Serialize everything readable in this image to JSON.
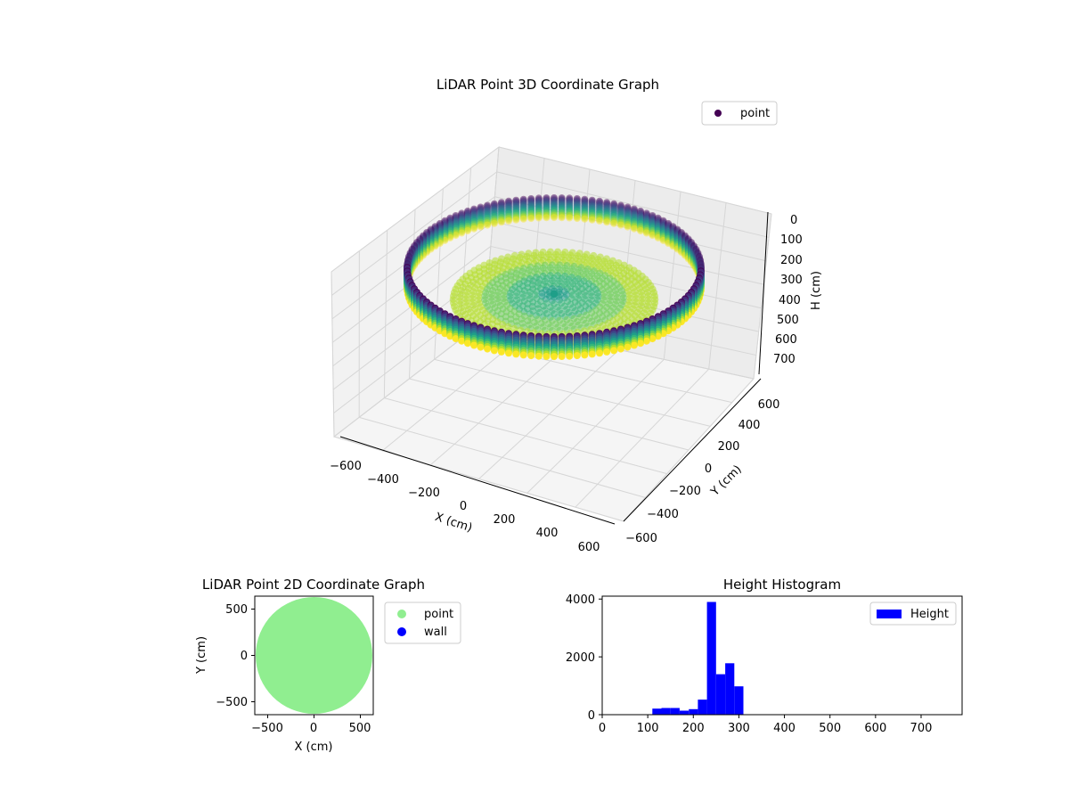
{
  "chart_data": [
    {
      "type": "scatter",
      "projection": "3d",
      "title": "LiDAR Point 3D Coordinate Graph",
      "xlabel": "X (cm)",
      "ylabel": "Y (cm)",
      "zlabel": "H (cm)",
      "xlim": [
        -650,
        650
      ],
      "ylim": [
        -650,
        650
      ],
      "zlim": [
        780,
        0
      ],
      "xticks": [
        "−600",
        "−400",
        "−200",
        "0",
        "200",
        "400",
        "600"
      ],
      "yticks": [
        "−600",
        "−400",
        "−200",
        "0",
        "200",
        "400",
        "600"
      ],
      "zticks": [
        "0",
        "100",
        "200",
        "300",
        "400",
        "500",
        "600",
        "700"
      ],
      "legend": {
        "position": "top-right",
        "entries": [
          {
            "label": "point",
            "color": "#440154"
          }
        ]
      },
      "colormap": "viridis",
      "grid": true,
      "shape": {
        "wall_radius_cm": 600,
        "wall_height_range_cm": [
          0,
          110
        ],
        "floor_radius_cm": 420,
        "floor_height_cm": 260
      }
    },
    {
      "type": "scatter",
      "title": "LiDAR Point 2D Coordinate Graph",
      "xlabel": "X (cm)",
      "ylabel": "Y (cm)",
      "xlim": [
        -640,
        640
      ],
      "ylim": [
        -640,
        640
      ],
      "xticks": [
        "−500",
        "0",
        "500"
      ],
      "yticks": [
        "−500",
        "0",
        "500"
      ],
      "series": [
        {
          "name": "point",
          "color": "#90ee90",
          "shape": "filled disk",
          "radius_cm": 630
        },
        {
          "name": "wall",
          "color": "#0000ff"
        }
      ],
      "legend": {
        "position": "outside-right"
      }
    },
    {
      "type": "bar",
      "subtype": "histogram",
      "title": "Height Histogram",
      "xlabel": "",
      "ylabel": "",
      "xlim": [
        0,
        790
      ],
      "ylim": [
        0,
        4100
      ],
      "xticks": [
        "0",
        "100",
        "200",
        "300",
        "400",
        "500",
        "600",
        "700"
      ],
      "yticks": [
        "0",
        "2000",
        "4000"
      ],
      "color": "#0000ff",
      "legend": {
        "position": "top-right",
        "entries": [
          {
            "label": "Height",
            "color": "#0000ff"
          }
        ]
      },
      "bins": [
        {
          "x0": 110,
          "x1": 130,
          "value": 210
        },
        {
          "x0": 130,
          "x1": 150,
          "value": 230
        },
        {
          "x0": 150,
          "x1": 170,
          "value": 230
        },
        {
          "x0": 170,
          "x1": 190,
          "value": 140
        },
        {
          "x0": 190,
          "x1": 210,
          "value": 190
        },
        {
          "x0": 210,
          "x1": 230,
          "value": 520
        },
        {
          "x0": 230,
          "x1": 250,
          "value": 3900
        },
        {
          "x0": 250,
          "x1": 270,
          "value": 1400
        },
        {
          "x0": 270,
          "x1": 290,
          "value": 1780
        },
        {
          "x0": 290,
          "x1": 310,
          "value": 980
        }
      ]
    }
  ]
}
